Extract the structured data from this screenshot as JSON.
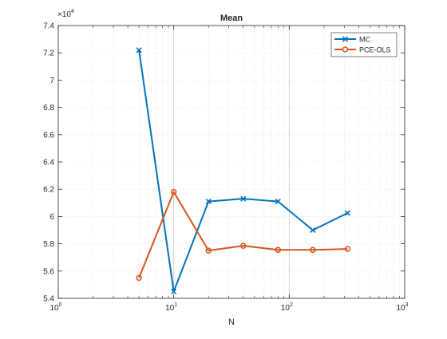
{
  "chart_data": {
    "type": "line",
    "title": "Mean",
    "xlabel": "N",
    "ylabel": "",
    "x_scale": "log",
    "xlim": [
      1,
      1000
    ],
    "ylim": [
      54000,
      74000
    ],
    "y_exponent_label": "×10",
    "y_exponent_power": "4",
    "grid": "on",
    "legend_position": "top-right",
    "x_ticks": [
      {
        "value": 1,
        "base": "10",
        "exp": "0"
      },
      {
        "value": 10,
        "base": "10",
        "exp": "1"
      },
      {
        "value": 100,
        "base": "10",
        "exp": "2"
      },
      {
        "value": 1000,
        "base": "10",
        "exp": "3"
      }
    ],
    "y_ticks": [
      {
        "value": 54000,
        "label": "5.4"
      },
      {
        "value": 56000,
        "label": "5.6"
      },
      {
        "value": 58000,
        "label": "5.8"
      },
      {
        "value": 60000,
        "label": "6"
      },
      {
        "value": 62000,
        "label": "6.2"
      },
      {
        "value": 64000,
        "label": "6.4"
      },
      {
        "value": 66000,
        "label": "6.6"
      },
      {
        "value": 68000,
        "label": "6.8"
      },
      {
        "value": 70000,
        "label": "7"
      },
      {
        "value": 72000,
        "label": "7.2"
      },
      {
        "value": 74000,
        "label": "7.4"
      }
    ],
    "x": [
      5,
      10,
      20,
      40,
      80,
      160,
      320
    ],
    "series": [
      {
        "name": "MC",
        "marker": "x",
        "color": "#0072BD",
        "values": [
          72200,
          54500,
          61100,
          61300,
          61100,
          59000,
          60250
        ]
      },
      {
        "name": "PCE-OLS",
        "marker": "o",
        "color": "#D95319",
        "values": [
          55500,
          61800,
          57500,
          57850,
          57550,
          57550,
          57620
        ]
      }
    ]
  }
}
